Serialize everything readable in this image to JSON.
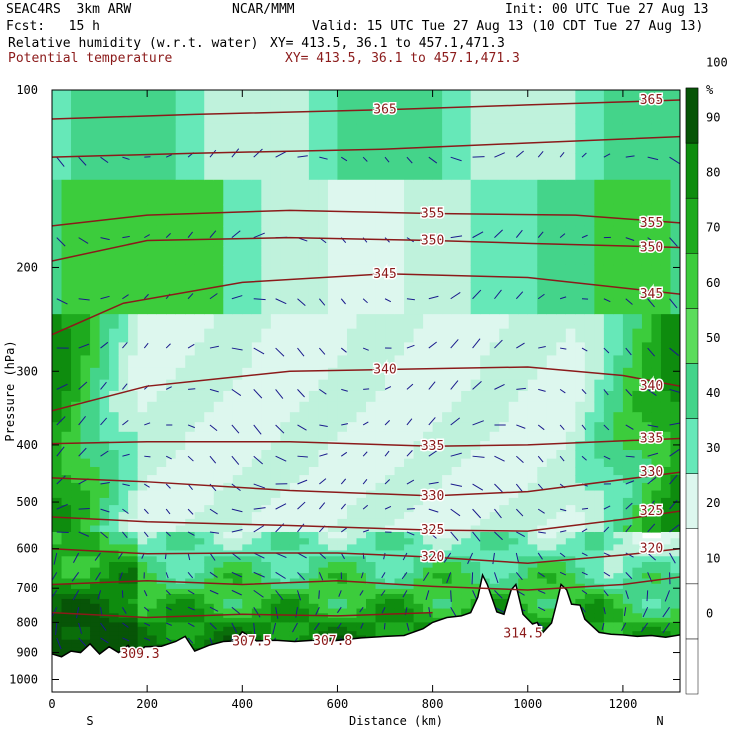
{
  "header": {
    "model": "SEAC4RS  3km ARW",
    "org": "NCAR/MMM",
    "init": "Init: 00 UTC Tue 27 Aug 13",
    "fcst": "Fcst:   15 h",
    "valid": "Valid: 15 UTC Tue 27 Aug 13 (10 CDT Tue 27 Aug 13)",
    "field1": "Relative humidity (w.r.t. water)",
    "xy1": "XY= 413.5, 36.1 to 457.1,471.3",
    "field2": "Potential temperature",
    "xy2": "XY= 413.5, 36.1 to 457.1,471.3"
  },
  "colors": {
    "theta_line": "#8b1a1a",
    "wind_vector": "#1a1a8c",
    "terrain": "#ffffff",
    "rh_levels": [
      "#ffffff",
      "#ddf7ee",
      "#bff2dc",
      "#66e8b8",
      "#44d48a",
      "#3ccc3c",
      "#1eaa1e",
      "#0e8c0e",
      "#0a6e0a",
      "#075407"
    ]
  },
  "chart_data": {
    "type": "heatmap",
    "xlabel": "Distance (km)",
    "ylabel": "Pressure (hPa)",
    "xlim": [
      0,
      1320
    ],
    "ylim": [
      1050,
      100
    ],
    "x_ticks": [
      "0",
      "200",
      "400",
      "600",
      "800",
      "1000",
      "1200"
    ],
    "y_ticks": [
      "100",
      "200",
      "300",
      "400",
      "500",
      "600",
      "700",
      "800",
      "900",
      "1000"
    ],
    "y_log_scale": true,
    "end_labels": {
      "left": "S",
      "right": "N"
    },
    "colorbar": {
      "unit": "%",
      "levels": [
        0,
        10,
        20,
        30,
        40,
        50,
        60,
        70,
        80,
        90,
        100
      ],
      "tick_labels": [
        "0",
        "10",
        "20",
        "30",
        "40",
        "50",
        "60",
        "70",
        "80",
        "90",
        "100"
      ]
    },
    "theta_contours": [
      {
        "value": 365,
        "label": "365",
        "points": [
          [
            0,
            112
          ],
          [
            300,
            110
          ],
          [
            700,
            108
          ],
          [
            1000,
            106
          ],
          [
            1320,
            104
          ]
        ]
      },
      {
        "value": 360,
        "label": "",
        "points": [
          [
            0,
            130
          ],
          [
            300,
            128
          ],
          [
            700,
            126
          ],
          [
            1000,
            123
          ],
          [
            1320,
            120
          ]
        ]
      },
      {
        "value": 355,
        "label": "355",
        "points": [
          [
            0,
            170
          ],
          [
            200,
            163
          ],
          [
            500,
            160
          ],
          [
            800,
            162
          ],
          [
            1100,
            163
          ],
          [
            1320,
            168
          ]
        ]
      },
      {
        "value": 350,
        "label": "350",
        "points": [
          [
            0,
            195
          ],
          [
            200,
            180
          ],
          [
            500,
            178
          ],
          [
            800,
            180
          ],
          [
            1000,
            182
          ],
          [
            1320,
            185
          ]
        ]
      },
      {
        "value": 345,
        "label": "345",
        "points": [
          [
            0,
            260
          ],
          [
            150,
            230
          ],
          [
            400,
            212
          ],
          [
            700,
            205
          ],
          [
            1000,
            208
          ],
          [
            1320,
            222
          ]
        ]
      },
      {
        "value": 340,
        "label": "340",
        "points": [
          [
            0,
            350
          ],
          [
            200,
            318
          ],
          [
            500,
            300
          ],
          [
            700,
            298
          ],
          [
            1000,
            295
          ],
          [
            1200,
            305
          ],
          [
            1320,
            318
          ]
        ]
      },
      {
        "value": 335,
        "label": "335",
        "points": [
          [
            0,
            398
          ],
          [
            200,
            395
          ],
          [
            500,
            395
          ],
          [
            800,
            402
          ],
          [
            1000,
            400
          ],
          [
            1320,
            390
          ]
        ]
      },
      {
        "value": 330,
        "label": "330",
        "points": [
          [
            0,
            455
          ],
          [
            200,
            462
          ],
          [
            500,
            478
          ],
          [
            800,
            488
          ],
          [
            1000,
            480
          ],
          [
            1320,
            445
          ]
        ]
      },
      {
        "value": 325,
        "label": "325",
        "points": [
          [
            0,
            530
          ],
          [
            200,
            540
          ],
          [
            500,
            548
          ],
          [
            800,
            558
          ],
          [
            1000,
            560
          ],
          [
            1200,
            535
          ],
          [
            1320,
            518
          ]
        ]
      },
      {
        "value": 320,
        "label": "320",
        "points": [
          [
            0,
            600
          ],
          [
            200,
            612
          ],
          [
            400,
            610
          ],
          [
            600,
            610
          ],
          [
            800,
            620
          ],
          [
            1000,
            635
          ],
          [
            1200,
            615
          ],
          [
            1320,
            600
          ]
        ]
      },
      {
        "value": 315,
        "label": "",
        "points": [
          [
            0,
            690
          ],
          [
            200,
            680
          ],
          [
            400,
            690
          ],
          [
            600,
            680
          ],
          [
            800,
            695
          ],
          [
            1000,
            705
          ],
          [
            1200,
            690
          ],
          [
            1320,
            670
          ]
        ]
      },
      {
        "value": 310,
        "label": "",
        "points": [
          [
            0,
            770
          ],
          [
            200,
            785
          ],
          [
            400,
            775
          ],
          [
            600,
            780
          ],
          [
            800,
            770
          ]
        ]
      }
    ],
    "contour_labels": [
      {
        "text": "309.3",
        "x": 185,
        "p": 905
      },
      {
        "text": "307.5",
        "x": 420,
        "p": 862
      },
      {
        "text": "307.8",
        "x": 590,
        "p": 860
      },
      {
        "text": "314.5",
        "x": 990,
        "p": 835
      }
    ],
    "terrain_surface_hpa": [
      [
        0,
        905
      ],
      [
        20,
        915
      ],
      [
        40,
        895
      ],
      [
        60,
        900
      ],
      [
        80,
        870
      ],
      [
        100,
        905
      ],
      [
        120,
        880
      ],
      [
        140,
        900
      ],
      [
        160,
        875
      ],
      [
        175,
        915
      ],
      [
        195,
        880
      ],
      [
        230,
        878
      ],
      [
        260,
        862
      ],
      [
        280,
        845
      ],
      [
        300,
        895
      ],
      [
        330,
        875
      ],
      [
        360,
        862
      ],
      [
        385,
        860
      ],
      [
        400,
        830
      ],
      [
        430,
        860
      ],
      [
        470,
        858
      ],
      [
        510,
        862
      ],
      [
        550,
        858
      ],
      [
        590,
        860
      ],
      [
        620,
        855
      ],
      [
        650,
        850
      ],
      [
        700,
        845
      ],
      [
        740,
        842
      ],
      [
        780,
        820
      ],
      [
        800,
        800
      ],
      [
        830,
        785
      ],
      [
        860,
        780
      ],
      [
        880,
        770
      ],
      [
        895,
        725
      ],
      [
        905,
        665
      ],
      [
        915,
        690
      ],
      [
        935,
        768
      ],
      [
        950,
        775
      ],
      [
        965,
        705
      ],
      [
        975,
        690
      ],
      [
        990,
        775
      ],
      [
        1010,
        805
      ],
      [
        1020,
        800
      ],
      [
        1030,
        835
      ],
      [
        1050,
        802
      ],
      [
        1062,
        735
      ],
      [
        1070,
        690
      ],
      [
        1082,
        705
      ],
      [
        1092,
        745
      ],
      [
        1110,
        748
      ],
      [
        1120,
        790
      ],
      [
        1150,
        832
      ],
      [
        1175,
        838
      ],
      [
        1200,
        840
      ],
      [
        1230,
        845
      ],
      [
        1260,
        842
      ],
      [
        1290,
        848
      ],
      [
        1320,
        840
      ]
    ]
  }
}
